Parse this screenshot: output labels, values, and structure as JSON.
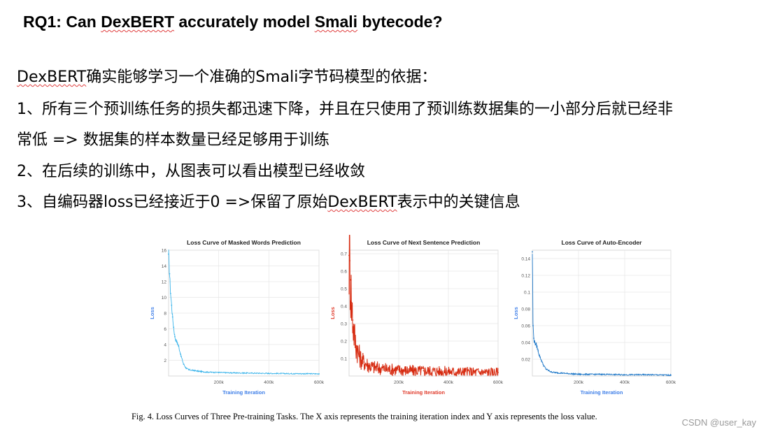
{
  "heading": {
    "prefix": "RQ1: Can ",
    "word1": "DexBERT",
    "middle": " accurately model ",
    "word2": "Smali",
    "suffix": " bytecode?"
  },
  "body": {
    "line1_word": "DexBERT",
    "line1_rest": "确实能够学习一个准确的Smali字节码模型的依据：",
    "line2": "1、所有三个预训练任务的损失都迅速下降，并且在只使用了预训练数据集的一小部分后就已经非",
    "line3": "常低 => 数据集的样本数量已经足够用于训练",
    "line4": "2、在后续的训练中，从图表可以看出模型已经收敛",
    "line5_pre": "3、自编码器loss已经接近于0 =>保留了原始",
    "line5_word": "DexBERT",
    "line5_post": "表示中的关键信息"
  },
  "caption": "Fig. 4.   Loss Curves of Three Pre-training Tasks. The X axis represents the training iteration index and Y axis represents the loss value.",
  "watermark": "CSDN @user_kay",
  "colors": {
    "blue_light": "#3bb4ea",
    "red": "#d62a10",
    "blue_dark": "#1f78c8",
    "axis_label_blue": "#3f7fe8",
    "axis_label_red": "#e03a2a"
  },
  "chart_data": [
    {
      "type": "line",
      "title": "Loss Curve of Masked Words Prediction",
      "xlabel": "Training Iteration",
      "ylabel": "Loss",
      "xlim": [
        0,
        600000
      ],
      "ylim": [
        0,
        16
      ],
      "xticks": [
        200000,
        400000,
        600000
      ],
      "xtick_labels": [
        "200k",
        "400k",
        "600k"
      ],
      "yticks": [
        2,
        4,
        6,
        8,
        10,
        12,
        14,
        16
      ],
      "ytick_labels": [
        "2",
        "4",
        "6",
        "8",
        "10",
        "12",
        "14",
        "16"
      ],
      "grid": true,
      "series": [
        {
          "x": [
            0,
            4000,
            8000,
            12000,
            16000,
            20000,
            25000,
            30000,
            35000,
            40000,
            50000,
            60000,
            70000,
            80000,
            100000,
            120000,
            150000,
            200000,
            250000,
            300000,
            400000,
            500000,
            600000
          ],
          "values": [
            15.5,
            13.0,
            10.5,
            9.0,
            7.5,
            6.2,
            5.0,
            4.5,
            4.2,
            3.8,
            2.5,
            1.5,
            1.0,
            0.8,
            0.7,
            0.6,
            0.5,
            0.45,
            0.4,
            0.38,
            0.33,
            0.3,
            0.28
          ]
        }
      ]
    },
    {
      "type": "line",
      "title": "Loss Curve of Next Sentence Prediction",
      "xlabel": "Training Iteration",
      "ylabel": "Loss",
      "xlim": [
        0,
        600000
      ],
      "ylim": [
        0,
        0.72
      ],
      "xticks": [
        200000,
        400000,
        600000
      ],
      "xtick_labels": [
        "200k",
        "400k",
        "600k"
      ],
      "yticks": [
        0.1,
        0.2,
        0.3,
        0.4,
        0.5,
        0.6,
        0.7
      ],
      "ytick_labels": [
        "0.1",
        "0.2",
        "0.3",
        "0.4",
        "0.5",
        "0.6",
        "0.7"
      ],
      "grid": true,
      "series": [
        {
          "x": [
            0,
            3000,
            6000,
            10000,
            15000,
            20000,
            25000,
            30000,
            40000,
            50000,
            60000,
            80000,
            100000,
            120000,
            150000,
            200000,
            250000,
            300000,
            400000,
            500000,
            600000
          ],
          "values": [
            0.69,
            0.66,
            0.55,
            0.42,
            0.32,
            0.25,
            0.2,
            0.17,
            0.12,
            0.09,
            0.08,
            0.06,
            0.05,
            0.045,
            0.04,
            0.035,
            0.03,
            0.03,
            0.025,
            0.022,
            0.02
          ]
        }
      ]
    },
    {
      "type": "line",
      "title": "Loss Curve of Auto-Encoder",
      "xlabel": "Training Iteration",
      "ylabel": "Loss",
      "xlim": [
        0,
        600000
      ],
      "ylim": [
        0,
        0.15
      ],
      "xticks": [
        200000,
        400000,
        600000
      ],
      "xtick_labels": [
        "200k",
        "400k",
        "600k"
      ],
      "yticks": [
        0.02,
        0.04,
        0.06,
        0.08,
        0.1,
        0.12,
        0.14
      ],
      "ytick_labels": [
        "0.02",
        "0.04",
        "0.06",
        "0.08",
        "0.1",
        "0.12",
        "0.14"
      ],
      "grid": true,
      "series": [
        {
          "x": [
            0,
            3000,
            6000,
            10000,
            15000,
            20000,
            25000,
            30000,
            40000,
            50000,
            60000,
            80000,
            100000,
            150000,
            200000,
            300000,
            400000,
            500000,
            600000
          ],
          "values": [
            0.148,
            0.06,
            0.045,
            0.04,
            0.038,
            0.035,
            0.03,
            0.025,
            0.018,
            0.012,
            0.008,
            0.005,
            0.004,
            0.003,
            0.002,
            0.002,
            0.0015,
            0.0015,
            0.001
          ]
        }
      ]
    }
  ]
}
